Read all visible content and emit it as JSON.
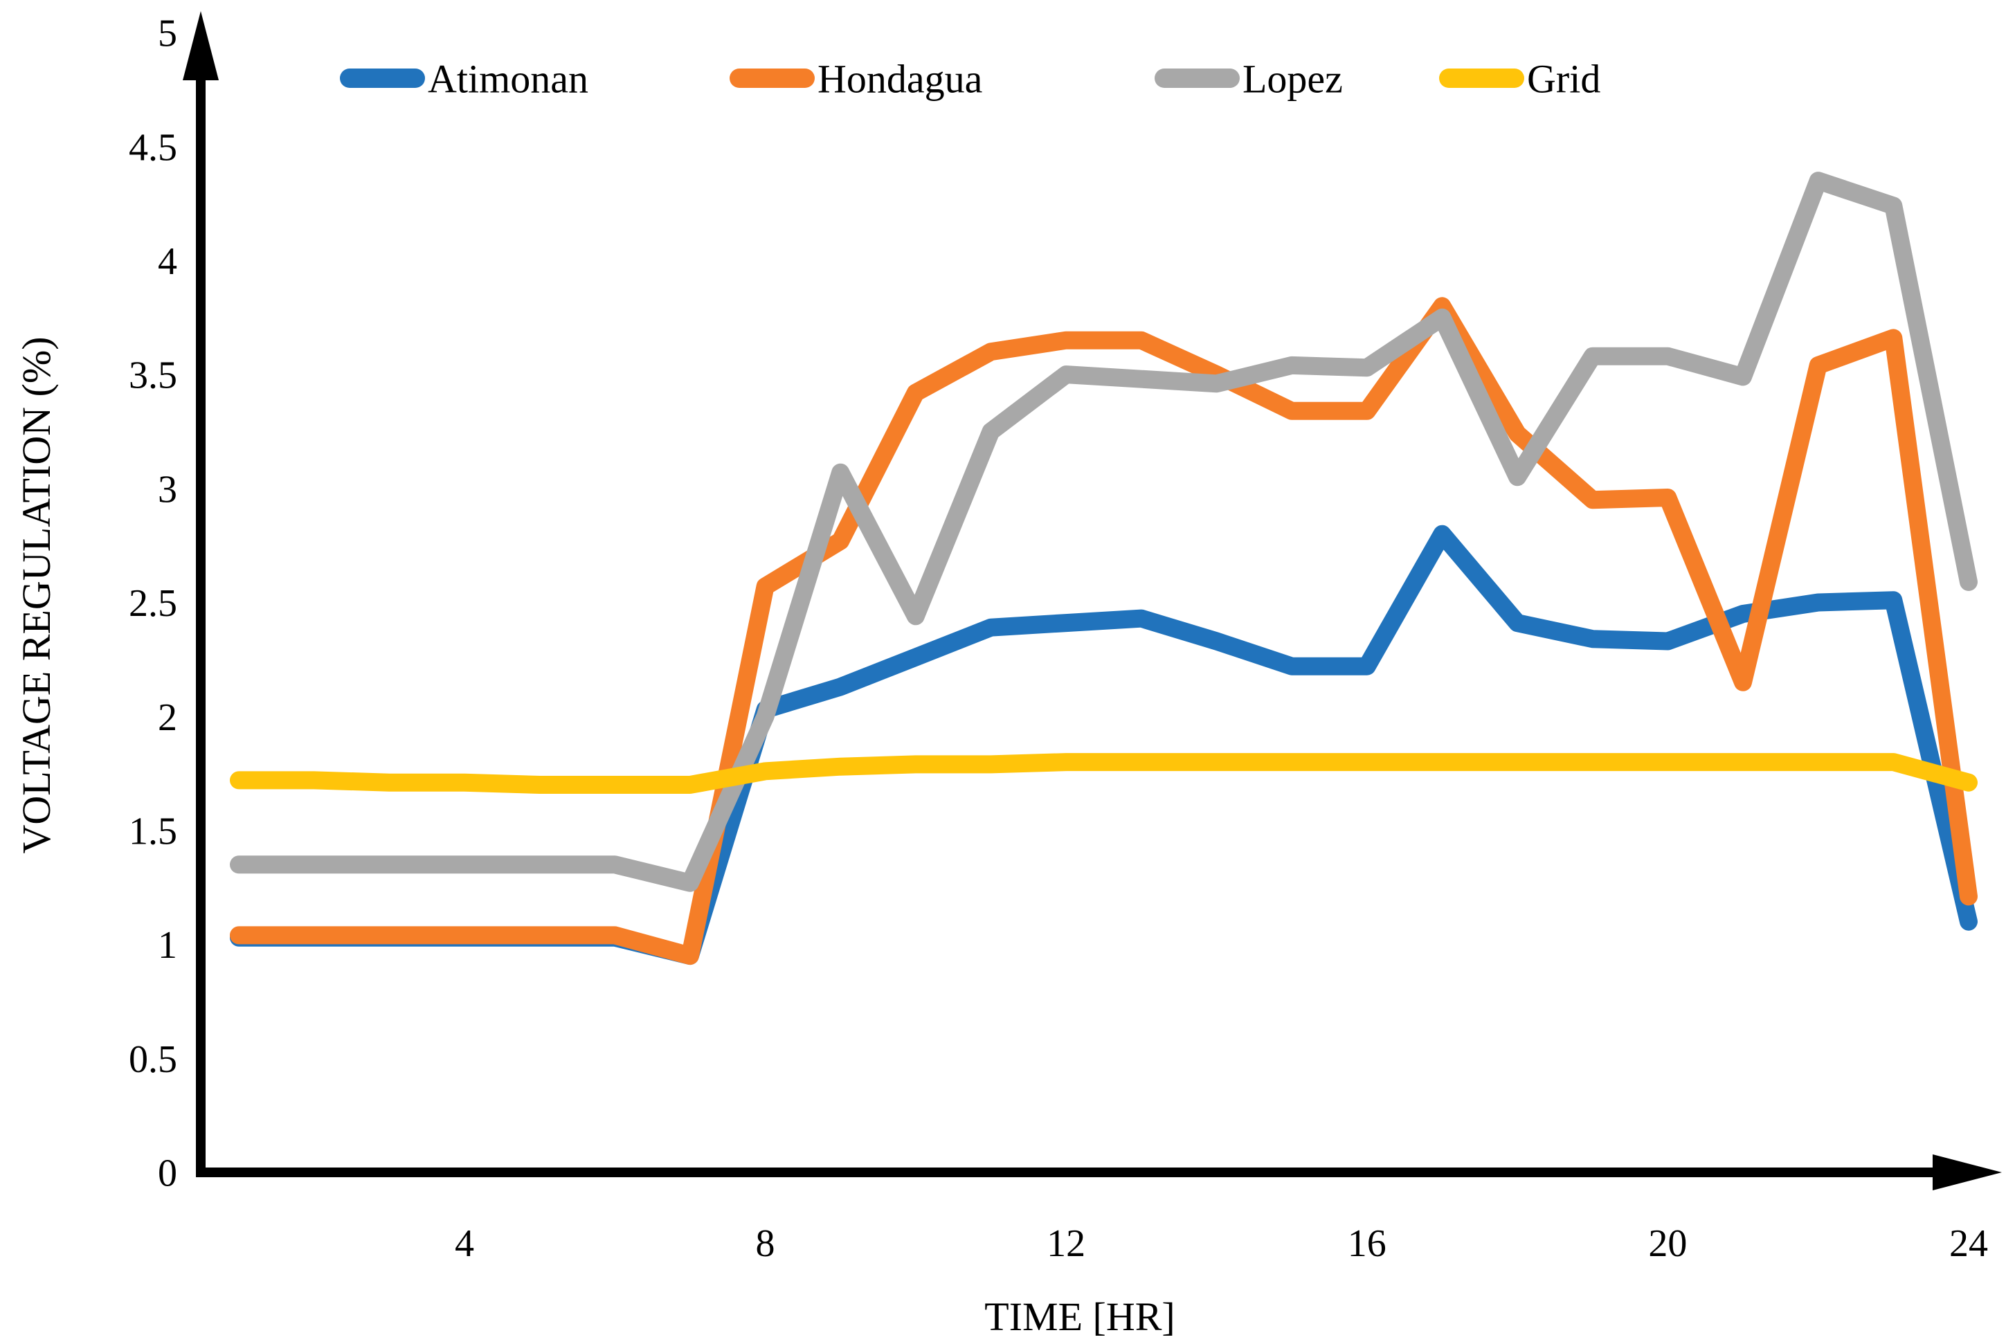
{
  "chart_data": {
    "type": "line",
    "title": "",
    "xlabel": "TIME [HR]",
    "ylabel": "VOLTAGE REGULATION (%)",
    "x": [
      1,
      2,
      3,
      4,
      5,
      6,
      7,
      8,
      9,
      10,
      11,
      12,
      13,
      14,
      15,
      16,
      17,
      18,
      19,
      20,
      21,
      22,
      23,
      24
    ],
    "xtick_labels": [
      "4",
      "8",
      "12",
      "16",
      "20",
      "24"
    ],
    "xticks": [
      4,
      8,
      12,
      16,
      20,
      24
    ],
    "ytick_labels": [
      "0",
      "0.5",
      "1",
      "1.5",
      "2",
      "2.5",
      "3",
      "3.5",
      "4",
      "4.5",
      "5"
    ],
    "yticks": [
      0,
      0.5,
      1,
      1.5,
      2,
      2.5,
      3,
      3.5,
      4,
      4.5,
      5
    ],
    "ylim": [
      0,
      5
    ],
    "xlim": [
      1,
      24
    ],
    "grid": false,
    "legend_position": "top",
    "axis_color": "#000000",
    "background_color": "#ffffff",
    "series": [
      {
        "name": "Atimonan",
        "color": "#2173BC",
        "values": [
          1.03,
          1.03,
          1.03,
          1.03,
          1.03,
          1.03,
          0.95,
          2.03,
          2.13,
          2.26,
          2.39,
          2.41,
          2.43,
          2.33,
          2.22,
          2.22,
          2.8,
          2.41,
          2.34,
          2.33,
          2.45,
          2.5,
          2.51,
          1.1
        ]
      },
      {
        "name": "Hondagua",
        "color": "#F57E28",
        "values": [
          1.04,
          1.04,
          1.04,
          1.04,
          1.04,
          1.04,
          0.95,
          2.57,
          2.77,
          3.42,
          3.6,
          3.65,
          3.65,
          3.5,
          3.34,
          3.34,
          3.8,
          3.24,
          2.95,
          2.96,
          2.15,
          3.54,
          3.66,
          1.21
        ]
      },
      {
        "name": "Lopez",
        "color": "#A8A8A8",
        "values": [
          1.35,
          1.35,
          1.35,
          1.35,
          1.35,
          1.35,
          1.27,
          2.0,
          3.07,
          2.44,
          3.25,
          3.5,
          3.48,
          3.46,
          3.54,
          3.53,
          3.75,
          3.05,
          3.58,
          3.58,
          3.49,
          4.35,
          4.24,
          2.59
        ]
      },
      {
        "name": "Grid",
        "color": "#FFC40A",
        "values": [
          1.72,
          1.72,
          1.71,
          1.71,
          1.7,
          1.7,
          1.7,
          1.76,
          1.78,
          1.79,
          1.79,
          1.8,
          1.8,
          1.8,
          1.8,
          1.8,
          1.8,
          1.8,
          1.8,
          1.8,
          1.8,
          1.8,
          1.8,
          1.71
        ]
      }
    ]
  }
}
